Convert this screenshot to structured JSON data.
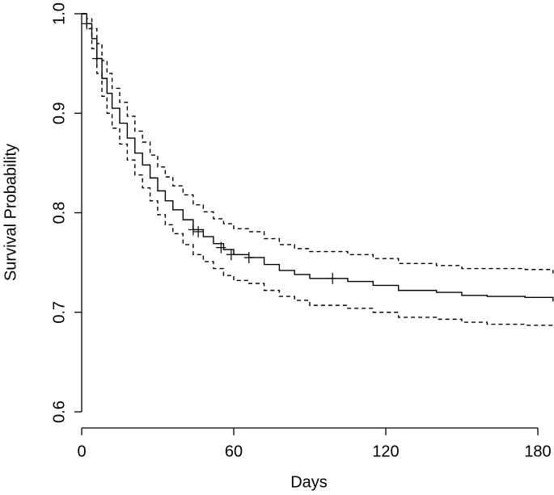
{
  "chart_data": {
    "type": "step",
    "x_label": "Days",
    "y_label": "Survival Probability",
    "xlim": [
      0,
      186
    ],
    "ylim": [
      0.6,
      1.0
    ],
    "xticks": [
      0,
      60,
      120,
      180
    ],
    "yticks": [
      0.6,
      0.7,
      0.8,
      0.9,
      {
        "value": 1,
        "label": "1.0"
      }
    ],
    "x": [
      0,
      2,
      4,
      6,
      8,
      10,
      12,
      15,
      18,
      21,
      24,
      27,
      30,
      33,
      36,
      40,
      44,
      48,
      52,
      56,
      60,
      66,
      72,
      78,
      84,
      90,
      100,
      105,
      115,
      125,
      140,
      150,
      160,
      175,
      186
    ],
    "series": [
      {
        "color": "#000000",
        "dashed": false,
        "values": [
          1.0,
          0.99,
          0.975,
          0.955,
          0.935,
          0.92,
          0.905,
          0.89,
          0.875,
          0.86,
          0.848,
          0.835,
          0.822,
          0.812,
          0.803,
          0.793,
          0.783,
          0.776,
          0.769,
          0.763,
          0.758,
          0.755,
          0.748,
          0.742,
          0.738,
          0.734,
          0.734,
          0.731,
          0.727,
          0.722,
          0.72,
          0.717,
          0.716,
          0.715,
          0.711
        ]
      },
      {
        "color": "#000000",
        "dashed": true,
        "values": [
          1.0,
          0.995,
          0.985,
          0.97,
          0.953,
          0.94,
          0.925,
          0.911,
          0.897,
          0.882,
          0.871,
          0.858,
          0.846,
          0.836,
          0.827,
          0.818,
          0.808,
          0.801,
          0.794,
          0.789,
          0.784,
          0.781,
          0.774,
          0.768,
          0.764,
          0.761,
          0.761,
          0.758,
          0.754,
          0.749,
          0.747,
          0.744,
          0.744,
          0.743,
          0.739
        ]
      },
      {
        "color": "#000000",
        "dashed": true,
        "values": [
          1.0,
          0.985,
          0.965,
          0.94,
          0.917,
          0.9,
          0.885,
          0.869,
          0.853,
          0.838,
          0.825,
          0.812,
          0.798,
          0.788,
          0.779,
          0.768,
          0.758,
          0.751,
          0.744,
          0.737,
          0.732,
          0.729,
          0.722,
          0.716,
          0.712,
          0.707,
          0.707,
          0.704,
          0.7,
          0.695,
          0.693,
          0.69,
          0.688,
          0.687,
          0.685
        ]
      }
    ],
    "censored": {
      "x": [
        2,
        6,
        44,
        46,
        55,
        59,
        66,
        99
      ],
      "values": [
        0.99,
        0.955,
        0.783,
        0.781,
        0.765,
        0.758,
        0.755,
        0.734
      ]
    }
  }
}
